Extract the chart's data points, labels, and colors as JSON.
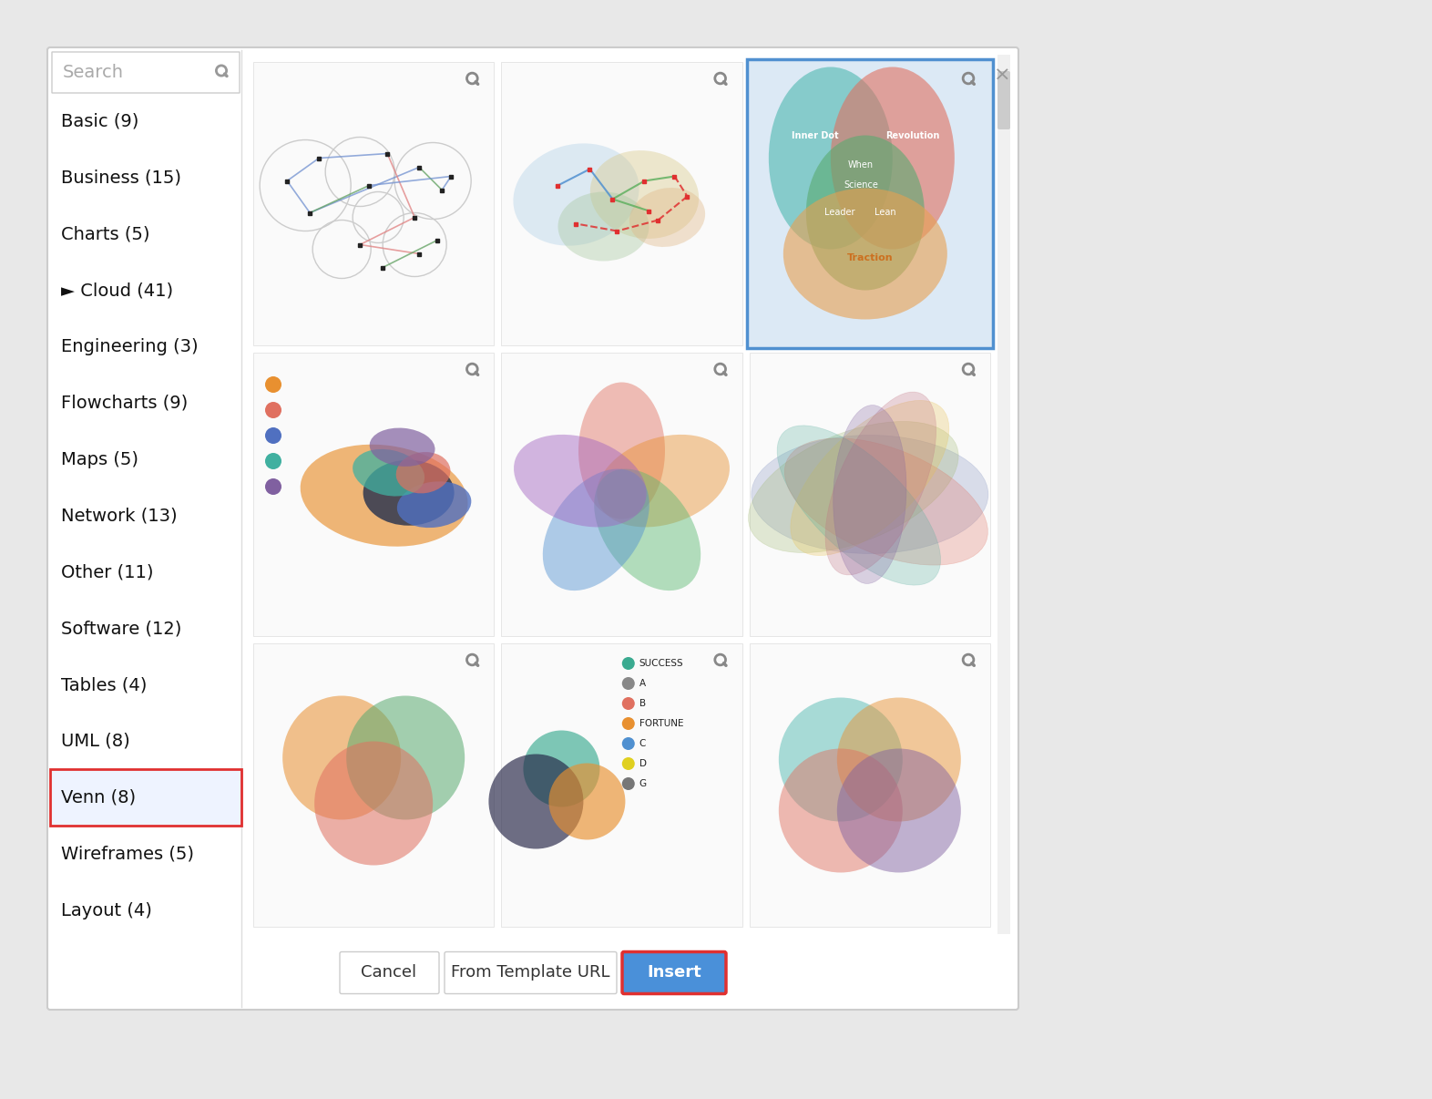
{
  "bg_color": "#e8e8e8",
  "dialog_bg": "#ffffff",
  "sidebar_items": [
    "Basic (9)",
    "Business (15)",
    "Charts (5)",
    "► Cloud (41)",
    "Engineering (3)",
    "Flowcharts (9)",
    "Maps (5)",
    "Network (13)",
    "Other (11)",
    "Software (12)",
    "Tables (4)",
    "UML (8)",
    "Venn (8)",
    "Wireframes (5)",
    "Layout (4)"
  ],
  "selected_item_index": 12,
  "cancel_btn_label": "Cancel",
  "template_btn_label": "From Template URL",
  "insert_btn_label": "Insert",
  "close_x": "×",
  "search_placeholder": "Search",
  "venn3_bg": "#dce9f5",
  "venn_selected_colors": [
    "#4db8b0",
    "#e07060",
    "#5aaa70",
    "#e8a050"
  ],
  "venn_selected_labels": [
    "Inner Dot",
    "Revolution",
    "Science",
    "Leader",
    "Lean",
    "When",
    "Traction"
  ]
}
